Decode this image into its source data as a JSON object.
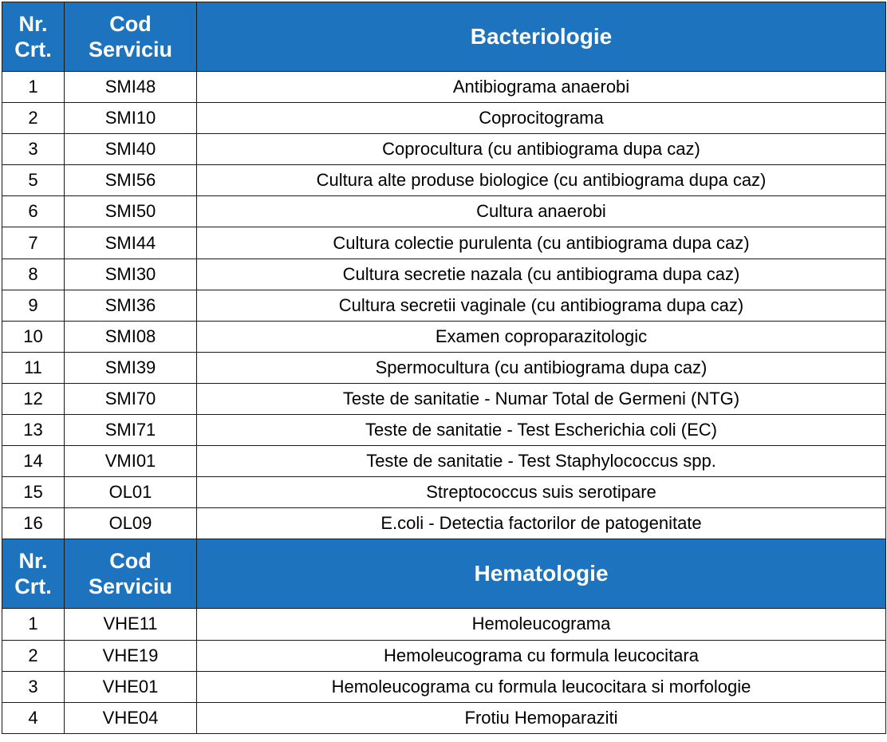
{
  "sections": [
    {
      "header": {
        "nr_label": [
          "Nr.",
          "Crt."
        ],
        "code_label": [
          "Cod",
          "Serviciu"
        ],
        "title": "Bacteriologie"
      },
      "rows": [
        {
          "nr": "1",
          "code": "SMI48",
          "name": "Antibiograma anaerobi"
        },
        {
          "nr": "2",
          "code": "SMI10",
          "name": "Coprocitograma"
        },
        {
          "nr": "3",
          "code": "SMI40",
          "name": "Coprocultura (cu antibiograma dupa caz)"
        },
        {
          "nr": "5",
          "code": "SMI56",
          "name": "Cultura alte produse biologice (cu antibiograma dupa caz)"
        },
        {
          "nr": "6",
          "code": "SMI50",
          "name": "Cultura anaerobi"
        },
        {
          "nr": "7",
          "code": "SMI44",
          "name": "Cultura colectie purulenta (cu antibiograma dupa caz)"
        },
        {
          "nr": "8",
          "code": "SMI30",
          "name": "Cultura secretie nazala (cu antibiograma dupa caz)"
        },
        {
          "nr": "9",
          "code": "SMI36",
          "name": "Cultura secretii vaginale (cu antibiograma dupa caz)"
        },
        {
          "nr": "10",
          "code": "SMI08",
          "name": "Examen coproparazitologic"
        },
        {
          "nr": "11",
          "code": "SMI39",
          "name": "Spermocultura (cu antibiograma dupa caz)"
        },
        {
          "nr": "12",
          "code": "SMI70",
          "name": "Teste de sanitatie - Numar Total de Germeni (NTG)"
        },
        {
          "nr": "13",
          "code": "SMI71",
          "name": "Teste de sanitatie - Test Escherichia coli  (EC)"
        },
        {
          "nr": "14",
          "code": "VMI01",
          "name": "Teste de sanitatie - Test Staphylococcus spp."
        },
        {
          "nr": "15",
          "code": "OL01",
          "name": "Streptococcus suis serotipare"
        },
        {
          "nr": "16",
          "code": "OL09",
          "name": "E.coli - Detectia factorilor de patogenitate"
        }
      ]
    },
    {
      "header": {
        "nr_label": [
          "Nr.",
          "Crt."
        ],
        "code_label": [
          "Cod",
          "Serviciu"
        ],
        "title": "Hematologie"
      },
      "rows": [
        {
          "nr": "1",
          "code": "VHE11",
          "name": "Hemoleucograma"
        },
        {
          "nr": "2",
          "code": "VHE19",
          "name": "Hemoleucograma cu formula leucocitara"
        },
        {
          "nr": "3",
          "code": "VHE01",
          "name": "Hemoleucograma cu formula leucocitara si morfologie"
        },
        {
          "nr": "4",
          "code": "VHE04",
          "name": "Frotiu Hemoparaziti"
        }
      ]
    }
  ],
  "colors": {
    "header_bg": "#1e73be",
    "header_text": "#ffffff",
    "border": "#1a1a1a"
  }
}
